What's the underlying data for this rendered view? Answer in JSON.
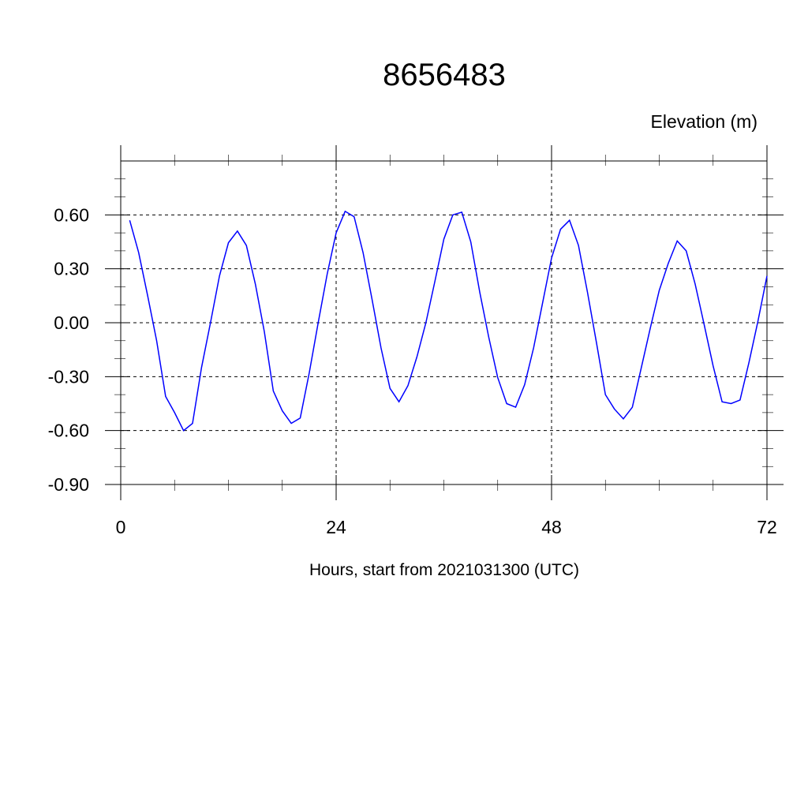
{
  "chart_data": {
    "type": "line",
    "title": "8656483",
    "ylabel": "Elevation (m)",
    "xlabel": "Hours, start from 2021031300 (UTC)",
    "xlim": [
      0,
      72
    ],
    "ylim": [
      -0.9,
      0.9
    ],
    "x_ticks": [
      0,
      24,
      48,
      72
    ],
    "x_tick_labels": [
      "0",
      "24",
      "48",
      "72"
    ],
    "y_ticks": [
      -0.9,
      -0.6,
      -0.3,
      0.0,
      0.3,
      0.6
    ],
    "y_tick_labels": [
      "-0.90",
      "-0.60",
      "-0.30",
      "0.00",
      "0.30",
      "0.60"
    ],
    "grid": true,
    "line_color": "#0000ff",
    "series": [
      {
        "x": [
          1,
          2,
          3,
          4,
          5,
          6,
          7,
          8,
          9,
          10,
          11,
          12,
          13,
          14,
          15,
          16,
          17,
          18,
          19,
          20,
          21,
          22,
          23,
          24,
          25,
          26,
          27,
          28,
          29,
          30,
          31,
          32,
          33,
          34,
          35,
          36,
          37,
          38,
          39,
          40,
          41,
          42,
          43,
          44,
          45,
          46,
          47,
          48,
          49,
          50,
          51,
          52,
          53,
          54,
          55,
          56,
          57,
          58,
          59,
          60,
          61,
          62,
          63,
          64,
          65,
          66,
          67,
          68,
          69,
          70,
          71,
          72
        ],
        "values": [
          0.57,
          0.39,
          0.15,
          -0.1,
          -0.41,
          -0.5,
          -0.6,
          -0.56,
          -0.25,
          0.0,
          0.26,
          0.445,
          0.51,
          0.43,
          0.215,
          -0.05,
          -0.38,
          -0.49,
          -0.56,
          -0.53,
          -0.28,
          0.0,
          0.27,
          0.5,
          0.62,
          0.59,
          0.39,
          0.13,
          -0.14,
          -0.365,
          -0.44,
          -0.35,
          -0.19,
          0.0,
          0.23,
          0.465,
          0.6,
          0.615,
          0.45,
          0.17,
          -0.08,
          -0.305,
          -0.45,
          -0.47,
          -0.345,
          -0.14,
          0.11,
          0.36,
          0.52,
          0.57,
          0.43,
          0.17,
          -0.11,
          -0.4,
          -0.48,
          -0.535,
          -0.47,
          -0.25,
          -0.03,
          0.18,
          0.33,
          0.455,
          0.4,
          0.215,
          -0.01,
          -0.24,
          -0.44,
          -0.45,
          -0.43,
          -0.22,
          0.01,
          0.26
        ]
      }
    ]
  }
}
